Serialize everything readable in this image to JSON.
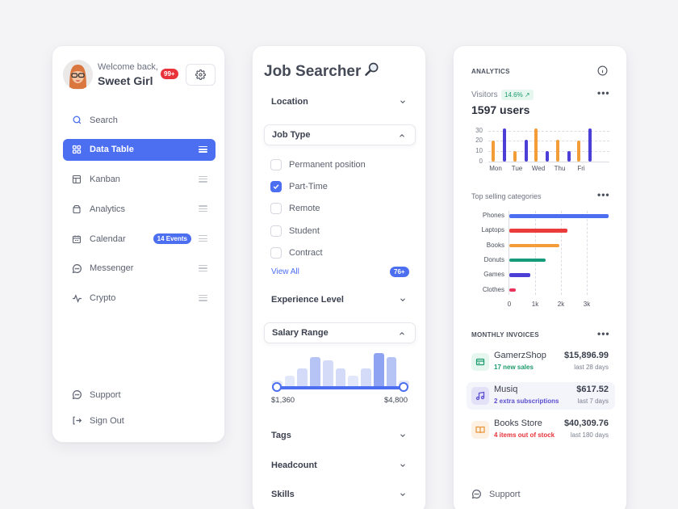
{
  "profile": {
    "welcome": "Welcome back,",
    "name": "Sweet Girl",
    "notifications": "99+"
  },
  "nav": {
    "items": [
      {
        "label": "Search",
        "icon": "search-icon",
        "active": false
      },
      {
        "label": "Data Table",
        "icon": "grid-icon",
        "active": true
      },
      {
        "label": "Kanban",
        "icon": "kanban-icon",
        "active": false
      },
      {
        "label": "Analytics",
        "icon": "analytics-icon",
        "active": false
      },
      {
        "label": "Calendar",
        "icon": "calendar-icon",
        "active": false,
        "badge": "14 Events"
      },
      {
        "label": "Messenger",
        "icon": "chat-icon",
        "active": false
      },
      {
        "label": "Crypto",
        "icon": "pulse-icon",
        "active": false
      }
    ],
    "bottom": [
      {
        "label": "Support",
        "icon": "chat-icon"
      },
      {
        "label": "Sign Out",
        "icon": "sign-out-icon"
      }
    ]
  },
  "job_searcher": {
    "title": "Job Searcher",
    "sections": {
      "location": "Location",
      "job_type": "Job Type",
      "experience": "Experience Level",
      "salary": "Salary Range",
      "tags": "Tags",
      "headcount": "Headcount",
      "skills": "Skills"
    },
    "job_types": [
      {
        "label": "Permanent position",
        "checked": false
      },
      {
        "label": "Part-Time",
        "checked": true
      },
      {
        "label": "Remote",
        "checked": false
      },
      {
        "label": "Student",
        "checked": false
      },
      {
        "label": "Contract",
        "checked": false
      }
    ],
    "view_all": "View All",
    "more_count": "76+",
    "salary_min": "$1,360",
    "salary_max": "$4,800",
    "histogram": [
      8,
      14,
      22,
      36,
      32,
      22,
      14,
      22,
      41,
      36,
      8
    ]
  },
  "analytics": {
    "header": "ANALYTICS",
    "visitors_label": "Visitors",
    "visitors_trend": "14.6% ↗",
    "users": "1597 users",
    "top_selling_title": "Top selling categories",
    "invoices_title": "MONTHLY INVOICES",
    "invoices": [
      {
        "name": "GamerzShop",
        "sub": "17 new sales",
        "amount": "$15,896.99",
        "period": "last 28 days",
        "color": "#1d9a6c",
        "bg": "#e6f7f0",
        "icon": "card-icon"
      },
      {
        "name": "Musiq",
        "sub": "2 extra subscriptions",
        "amount": "$617.52",
        "period": "last 7 days",
        "color": "#5b4fd0",
        "bg": "#e6e4fa",
        "icon": "music-icon"
      },
      {
        "name": "Books Store",
        "sub": "4 items out of stock",
        "amount": "$40,309.76",
        "period": "last 180 days",
        "color": "#e8333a",
        "bg": "#fdf1e4",
        "icon": "book-icon"
      }
    ],
    "support": "Support"
  },
  "chart_data": [
    {
      "type": "bar",
      "title": "Visitors",
      "categories": [
        "Mon",
        "Tue",
        "Wed",
        "Thu",
        "Fri"
      ],
      "series": [
        {
          "name": "series-orange",
          "color": "#f29d38",
          "values": [
            20,
            10,
            32,
            21,
            20
          ]
        },
        {
          "name": "series-blue",
          "color": "#4b3fd8",
          "values": [
            32,
            21,
            10,
            10,
            32
          ]
        }
      ],
      "yticks": [
        0,
        10,
        20,
        30
      ],
      "ylim": [
        0,
        32
      ],
      "grid": true
    },
    {
      "type": "bar",
      "orientation": "horizontal",
      "title": "Top selling categories",
      "categories": [
        "Phones",
        "Laptops",
        "Books",
        "Donuts",
        "Games",
        "Clothes"
      ],
      "values": [
        3850,
        2250,
        1950,
        1400,
        800,
        250
      ],
      "colors": [
        "#4c6ef0",
        "#ec3b3b",
        "#f29d38",
        "#169c7a",
        "#4b3fd8",
        "#e8335a"
      ],
      "xticks": [
        "0",
        "1k",
        "2k",
        "3k"
      ],
      "xlim": [
        0,
        4000
      ],
      "grid": true
    }
  ]
}
